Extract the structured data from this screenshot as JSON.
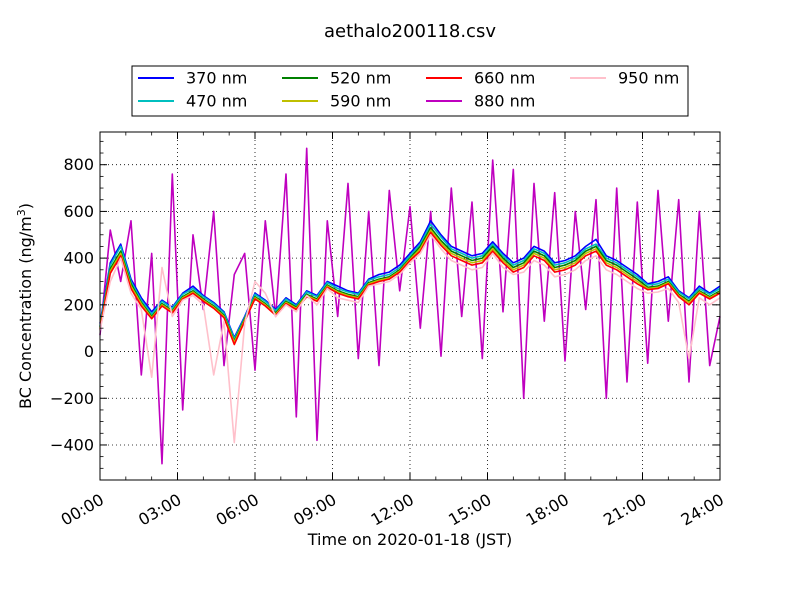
{
  "chart_data": {
    "type": "line",
    "title": "aethalo200118.csv",
    "xlabel": "Time on 2020-01-18 (JST)",
    "ylabel_main": "BC Concentration (ng/m",
    "ylabel_sup": "3",
    "ylabel_tail": ")",
    "xlim_hours": [
      0,
      24
    ],
    "ylim": [
      -550,
      940
    ],
    "x_ticks": [
      {
        "hour": 0,
        "label": "00:00"
      },
      {
        "hour": 3,
        "label": "03:00"
      },
      {
        "hour": 6,
        "label": "06:00"
      },
      {
        "hour": 9,
        "label": "09:00"
      },
      {
        "hour": 12,
        "label": "12:00"
      },
      {
        "hour": 15,
        "label": "15:00"
      },
      {
        "hour": 18,
        "label": "18:00"
      },
      {
        "hour": 21,
        "label": "21:00"
      },
      {
        "hour": 24,
        "label": "24:00"
      }
    ],
    "y_ticks": [
      {
        "value": -400,
        "label": "−400"
      },
      {
        "value": -200,
        "label": "−200"
      },
      {
        "value": 0,
        "label": "0"
      },
      {
        "value": 200,
        "label": "200"
      },
      {
        "value": 400,
        "label": "400"
      },
      {
        "value": 600,
        "label": "600"
      },
      {
        "value": 800,
        "label": "800"
      }
    ],
    "grid": true,
    "legend_placement": "top-center",
    "sample_hours": [
      0,
      0.4,
      0.8,
      1.2,
      1.6,
      2,
      2.4,
      2.8,
      3.2,
      3.6,
      4,
      4.4,
      4.8,
      5.2,
      5.6,
      6,
      6.4,
      6.8,
      7.2,
      7.6,
      8,
      8.4,
      8.8,
      9.2,
      9.6,
      10,
      10.4,
      10.8,
      11.2,
      11.6,
      12,
      12.4,
      12.8,
      13.2,
      13.6,
      14,
      14.4,
      14.8,
      15.2,
      15.6,
      16,
      16.4,
      16.8,
      17.2,
      17.6,
      18,
      18.4,
      18.8,
      19.2,
      19.6,
      20,
      20.4,
      20.8,
      21.2,
      21.6,
      22,
      22.4,
      22.8,
      23.2,
      23.6,
      24
    ],
    "series": [
      {
        "name": "370 nm",
        "color": "#0000ff",
        "values": [
          120,
          380,
          460,
          310,
          230,
          170,
          220,
          190,
          250,
          280,
          240,
          210,
          170,
          60,
          150,
          250,
          220,
          180,
          230,
          200,
          260,
          240,
          300,
          280,
          260,
          250,
          310,
          330,
          340,
          370,
          420,
          470,
          560,
          500,
          450,
          430,
          410,
          420,
          470,
          420,
          380,
          400,
          450,
          430,
          380,
          390,
          410,
          450,
          480,
          410,
          390,
          360,
          330,
          290,
          300,
          320,
          260,
          230,
          280,
          250,
          280
        ]
      },
      {
        "name": "470 nm",
        "color": "#00bfbf",
        "values": [
          110,
          370,
          450,
          300,
          220,
          160,
          215,
          185,
          245,
          270,
          235,
          205,
          165,
          55,
          145,
          245,
          215,
          175,
          225,
          195,
          255,
          235,
          295,
          270,
          255,
          245,
          305,
          320,
          330,
          360,
          410,
          460,
          545,
          490,
          440,
          420,
          400,
          410,
          460,
          410,
          370,
          390,
          440,
          420,
          370,
          380,
          400,
          440,
          460,
          400,
          380,
          350,
          320,
          285,
          290,
          310,
          255,
          225,
          270,
          245,
          270
        ]
      },
      {
        "name": "520 nm",
        "color": "#008000",
        "values": [
          105,
          355,
          430,
          290,
          210,
          150,
          205,
          175,
          235,
          260,
          225,
          195,
          155,
          45,
          140,
          235,
          205,
          165,
          215,
          190,
          245,
          225,
          285,
          260,
          245,
          235,
          295,
          310,
          320,
          350,
          400,
          450,
          530,
          475,
          430,
          410,
          390,
          400,
          450,
          400,
          360,
          380,
          430,
          410,
          360,
          370,
          390,
          430,
          450,
          390,
          370,
          340,
          310,
          275,
          280,
          300,
          245,
          215,
          260,
          235,
          260
        ]
      },
      {
        "name": "590 nm",
        "color": "#bfbf00",
        "values": [
          100,
          345,
          420,
          280,
          205,
          145,
          200,
          170,
          230,
          255,
          220,
          190,
          150,
          40,
          135,
          230,
          200,
          160,
          210,
          185,
          240,
          220,
          280,
          255,
          240,
          230,
          290,
          305,
          315,
          345,
          395,
          440,
          520,
          465,
          420,
          400,
          380,
          390,
          440,
          390,
          350,
          370,
          420,
          400,
          350,
          360,
          380,
          420,
          440,
          380,
          360,
          330,
          300,
          270,
          275,
          295,
          240,
          210,
          255,
          230,
          255
        ]
      },
      {
        "name": "660 nm",
        "color": "#ff0000",
        "values": [
          95,
          335,
          410,
          270,
          195,
          140,
          195,
          165,
          225,
          250,
          215,
          185,
          145,
          30,
          130,
          225,
          195,
          155,
          205,
          180,
          235,
          215,
          275,
          250,
          235,
          225,
          285,
          300,
          310,
          340,
          390,
          430,
          510,
          455,
          410,
          390,
          370,
          380,
          430,
          380,
          340,
          360,
          410,
          390,
          340,
          350,
          370,
          410,
          430,
          370,
          350,
          320,
          290,
          265,
          270,
          290,
          235,
          200,
          250,
          225,
          250
        ]
      },
      {
        "name": "880 nm",
        "color": "#bf00bf",
        "values": [
          70,
          520,
          300,
          560,
          -100,
          420,
          -480,
          760,
          -250,
          500,
          180,
          600,
          -60,
          330,
          420,
          -80,
          560,
          150,
          760,
          -280,
          870,
          -380,
          560,
          150,
          720,
          -30,
          600,
          -60,
          690,
          260,
          620,
          100,
          600,
          -20,
          700,
          150,
          640,
          -30,
          820,
          170,
          780,
          -200,
          720,
          130,
          680,
          -40,
          600,
          180,
          650,
          -200,
          700,
          -130,
          640,
          -50,
          690,
          130,
          650,
          -130,
          600,
          -60,
          150
        ]
      },
      {
        "name": "950 nm",
        "color": "#ffc0cb",
        "values": [
          90,
          300,
          400,
          250,
          180,
          -110,
          360,
          150,
          220,
          240,
          200,
          -100,
          130,
          -390,
          120,
          300,
          250,
          150,
          200,
          170,
          240,
          200,
          270,
          230,
          220,
          210,
          280,
          290,
          300,
          330,
          380,
          420,
          500,
          440,
          390,
          370,
          350,
          360,
          420,
          360,
          330,
          340,
          390,
          370,
          320,
          330,
          350,
          390,
          410,
          350,
          330,
          300,
          270,
          250,
          255,
          270,
          210,
          -30,
          230,
          200,
          230
        ]
      }
    ]
  }
}
